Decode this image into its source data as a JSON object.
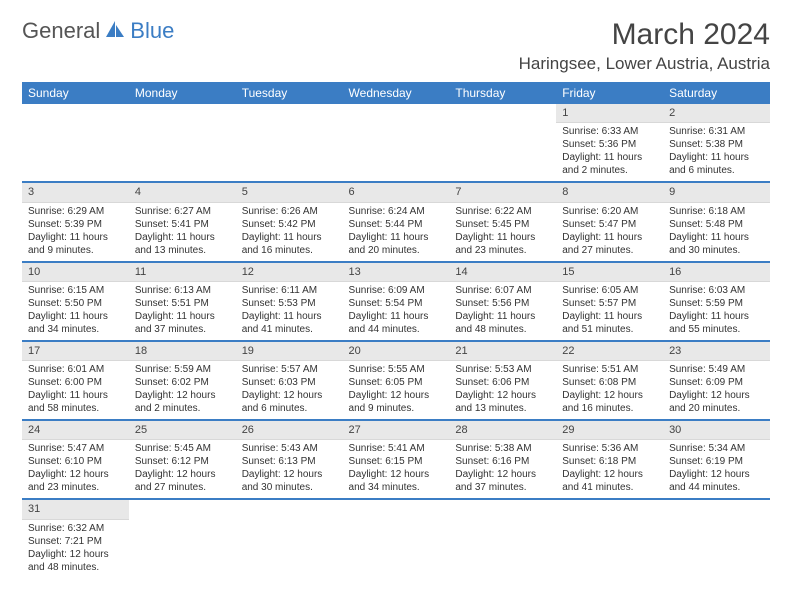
{
  "logo": {
    "general": "General",
    "blue": "Blue"
  },
  "title": "March 2024",
  "location": "Haringsee, Lower Austria, Austria",
  "colors": {
    "header_bg": "#3b7dc4",
    "header_text": "#ffffff",
    "daynum_bg": "#e8e8e8",
    "text": "#333333"
  },
  "day_headers": [
    "Sunday",
    "Monday",
    "Tuesday",
    "Wednesday",
    "Thursday",
    "Friday",
    "Saturday"
  ],
  "weeks": [
    [
      {
        "n": "",
        "lines": []
      },
      {
        "n": "",
        "lines": []
      },
      {
        "n": "",
        "lines": []
      },
      {
        "n": "",
        "lines": []
      },
      {
        "n": "",
        "lines": []
      },
      {
        "n": "1",
        "lines": [
          "Sunrise: 6:33 AM",
          "Sunset: 5:36 PM",
          "Daylight: 11 hours",
          "and 2 minutes."
        ]
      },
      {
        "n": "2",
        "lines": [
          "Sunrise: 6:31 AM",
          "Sunset: 5:38 PM",
          "Daylight: 11 hours",
          "and 6 minutes."
        ]
      }
    ],
    [
      {
        "n": "3",
        "lines": [
          "Sunrise: 6:29 AM",
          "Sunset: 5:39 PM",
          "Daylight: 11 hours",
          "and 9 minutes."
        ]
      },
      {
        "n": "4",
        "lines": [
          "Sunrise: 6:27 AM",
          "Sunset: 5:41 PM",
          "Daylight: 11 hours",
          "and 13 minutes."
        ]
      },
      {
        "n": "5",
        "lines": [
          "Sunrise: 6:26 AM",
          "Sunset: 5:42 PM",
          "Daylight: 11 hours",
          "and 16 minutes."
        ]
      },
      {
        "n": "6",
        "lines": [
          "Sunrise: 6:24 AM",
          "Sunset: 5:44 PM",
          "Daylight: 11 hours",
          "and 20 minutes."
        ]
      },
      {
        "n": "7",
        "lines": [
          "Sunrise: 6:22 AM",
          "Sunset: 5:45 PM",
          "Daylight: 11 hours",
          "and 23 minutes."
        ]
      },
      {
        "n": "8",
        "lines": [
          "Sunrise: 6:20 AM",
          "Sunset: 5:47 PM",
          "Daylight: 11 hours",
          "and 27 minutes."
        ]
      },
      {
        "n": "9",
        "lines": [
          "Sunrise: 6:18 AM",
          "Sunset: 5:48 PM",
          "Daylight: 11 hours",
          "and 30 minutes."
        ]
      }
    ],
    [
      {
        "n": "10",
        "lines": [
          "Sunrise: 6:15 AM",
          "Sunset: 5:50 PM",
          "Daylight: 11 hours",
          "and 34 minutes."
        ]
      },
      {
        "n": "11",
        "lines": [
          "Sunrise: 6:13 AM",
          "Sunset: 5:51 PM",
          "Daylight: 11 hours",
          "and 37 minutes."
        ]
      },
      {
        "n": "12",
        "lines": [
          "Sunrise: 6:11 AM",
          "Sunset: 5:53 PM",
          "Daylight: 11 hours",
          "and 41 minutes."
        ]
      },
      {
        "n": "13",
        "lines": [
          "Sunrise: 6:09 AM",
          "Sunset: 5:54 PM",
          "Daylight: 11 hours",
          "and 44 minutes."
        ]
      },
      {
        "n": "14",
        "lines": [
          "Sunrise: 6:07 AM",
          "Sunset: 5:56 PM",
          "Daylight: 11 hours",
          "and 48 minutes."
        ]
      },
      {
        "n": "15",
        "lines": [
          "Sunrise: 6:05 AM",
          "Sunset: 5:57 PM",
          "Daylight: 11 hours",
          "and 51 minutes."
        ]
      },
      {
        "n": "16",
        "lines": [
          "Sunrise: 6:03 AM",
          "Sunset: 5:59 PM",
          "Daylight: 11 hours",
          "and 55 minutes."
        ]
      }
    ],
    [
      {
        "n": "17",
        "lines": [
          "Sunrise: 6:01 AM",
          "Sunset: 6:00 PM",
          "Daylight: 11 hours",
          "and 58 minutes."
        ]
      },
      {
        "n": "18",
        "lines": [
          "Sunrise: 5:59 AM",
          "Sunset: 6:02 PM",
          "Daylight: 12 hours",
          "and 2 minutes."
        ]
      },
      {
        "n": "19",
        "lines": [
          "Sunrise: 5:57 AM",
          "Sunset: 6:03 PM",
          "Daylight: 12 hours",
          "and 6 minutes."
        ]
      },
      {
        "n": "20",
        "lines": [
          "Sunrise: 5:55 AM",
          "Sunset: 6:05 PM",
          "Daylight: 12 hours",
          "and 9 minutes."
        ]
      },
      {
        "n": "21",
        "lines": [
          "Sunrise: 5:53 AM",
          "Sunset: 6:06 PM",
          "Daylight: 12 hours",
          "and 13 minutes."
        ]
      },
      {
        "n": "22",
        "lines": [
          "Sunrise: 5:51 AM",
          "Sunset: 6:08 PM",
          "Daylight: 12 hours",
          "and 16 minutes."
        ]
      },
      {
        "n": "23",
        "lines": [
          "Sunrise: 5:49 AM",
          "Sunset: 6:09 PM",
          "Daylight: 12 hours",
          "and 20 minutes."
        ]
      }
    ],
    [
      {
        "n": "24",
        "lines": [
          "Sunrise: 5:47 AM",
          "Sunset: 6:10 PM",
          "Daylight: 12 hours",
          "and 23 minutes."
        ]
      },
      {
        "n": "25",
        "lines": [
          "Sunrise: 5:45 AM",
          "Sunset: 6:12 PM",
          "Daylight: 12 hours",
          "and 27 minutes."
        ]
      },
      {
        "n": "26",
        "lines": [
          "Sunrise: 5:43 AM",
          "Sunset: 6:13 PM",
          "Daylight: 12 hours",
          "and 30 minutes."
        ]
      },
      {
        "n": "27",
        "lines": [
          "Sunrise: 5:41 AM",
          "Sunset: 6:15 PM",
          "Daylight: 12 hours",
          "and 34 minutes."
        ]
      },
      {
        "n": "28",
        "lines": [
          "Sunrise: 5:38 AM",
          "Sunset: 6:16 PM",
          "Daylight: 12 hours",
          "and 37 minutes."
        ]
      },
      {
        "n": "29",
        "lines": [
          "Sunrise: 5:36 AM",
          "Sunset: 6:18 PM",
          "Daylight: 12 hours",
          "and 41 minutes."
        ]
      },
      {
        "n": "30",
        "lines": [
          "Sunrise: 5:34 AM",
          "Sunset: 6:19 PM",
          "Daylight: 12 hours",
          "and 44 minutes."
        ]
      }
    ],
    [
      {
        "n": "31",
        "lines": [
          "Sunrise: 6:32 AM",
          "Sunset: 7:21 PM",
          "Daylight: 12 hours",
          "and 48 minutes."
        ]
      },
      {
        "n": "",
        "lines": []
      },
      {
        "n": "",
        "lines": []
      },
      {
        "n": "",
        "lines": []
      },
      {
        "n": "",
        "lines": []
      },
      {
        "n": "",
        "lines": []
      },
      {
        "n": "",
        "lines": []
      }
    ]
  ]
}
